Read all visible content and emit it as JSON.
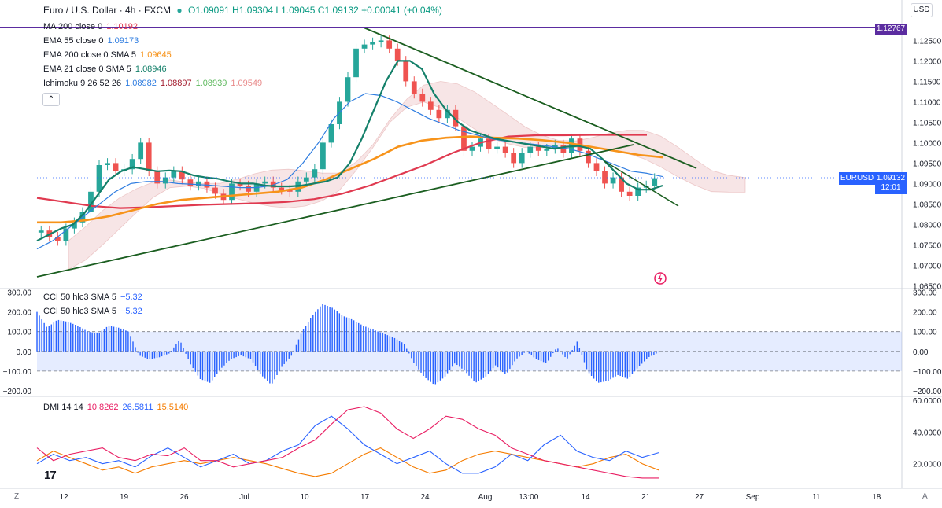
{
  "header": {
    "symbol": "Euro / U.S. Dollar · 4h · FXCM",
    "ohlc": "O1.09091 H1.09304 L1.09045 C1.09132 +0.00041 (+0.04%)"
  },
  "legend_main": [
    {
      "name": "MA 200 close 0",
      "value": "1.10192",
      "color": "#e03a50"
    },
    {
      "name": "EMA 55 close 0",
      "value": "1.09173",
      "color": "#2f7de0"
    },
    {
      "name": "EMA 200 close 0 SMA 5",
      "value": "1.09645",
      "color": "#f7931a"
    },
    {
      "name": "EMA 21 close 0 SMA 5",
      "value": "1.08946",
      "color": "#14806a"
    },
    {
      "name": "Ichimoku 9 26 52 26",
      "values": [
        "1.08982",
        "1.08897",
        "1.08939",
        "1.09549"
      ],
      "colors": [
        "#2f7de0",
        "#a31c2e",
        "#5cb85c",
        "#e88a8a"
      ]
    }
  ],
  "legend_cci": [
    {
      "name": "CCI 50 hlc3 SMA 5",
      "value": "−5.32"
    },
    {
      "name": "CCI 50 hlc3 SMA 5",
      "value": "−5.32"
    }
  ],
  "legend_dmi": {
    "name": "DMI 14 14",
    "values": [
      "10.8262",
      "26.5811",
      "15.5140"
    ],
    "colors": [
      "#e91e63",
      "#2962ff",
      "#f57c00"
    ]
  },
  "scale_button": "USD",
  "badges": {
    "ma_value": "1.12767",
    "symbol_tag": "EURUSD",
    "price": "1.09132",
    "countdown": "12:01"
  },
  "corner_left": "Z",
  "corner_right": "A",
  "logo_text": "17",
  "chart_data": {
    "type": "line",
    "price_axis": [
      "1.12500",
      "1.12000",
      "1.11500",
      "1.11000",
      "1.10500",
      "1.10000",
      "1.09500",
      "1.09000",
      "1.08500",
      "1.08000",
      "1.07500",
      "1.07000",
      "1.06500"
    ],
    "price_ticks": [
      1.125,
      1.12,
      1.115,
      1.11,
      1.105,
      1.1,
      1.095,
      1.09,
      1.085,
      1.08,
      1.075,
      1.07,
      1.065
    ],
    "price_range": [
      1.0645,
      1.1295
    ],
    "time_axis": [
      {
        "label": "12",
        "t": 0.04
      },
      {
        "label": "19",
        "t": 0.13
      },
      {
        "label": "26",
        "t": 0.22
      },
      {
        "label": "Jul",
        "t": 0.31
      },
      {
        "label": "10",
        "t": 0.4
      },
      {
        "label": "17",
        "t": 0.49
      },
      {
        "label": "24",
        "t": 0.58
      },
      {
        "label": "Aug",
        "t": 0.67
      },
      {
        "label": "13:00",
        "t": 0.735
      },
      {
        "label": "14",
        "t": 0.82
      },
      {
        "label": "21",
        "t": 0.91
      },
      {
        "label": "27",
        "t": 0.99
      },
      {
        "label": "Sep",
        "t": 1.07
      },
      {
        "label": "11",
        "t": 1.165
      },
      {
        "label": "18",
        "t": 1.255
      }
    ],
    "close_series": [
      1.0785,
      1.077,
      1.076,
      1.079,
      1.0805,
      1.083,
      1.088,
      1.0945,
      1.095,
      1.093,
      1.0935,
      1.096,
      1.1,
      1.093,
      1.09,
      1.0915,
      1.093,
      1.091,
      1.0895,
      1.0905,
      1.089,
      1.0875,
      1.086,
      1.09,
      1.0895,
      1.088,
      1.09,
      1.0905,
      1.089,
      1.0885,
      1.088,
      1.0905,
      1.0915,
      1.0935,
      1.1,
      1.1045,
      1.11,
      1.116,
      1.123,
      1.124,
      1.1245,
      1.125,
      1.123,
      1.12,
      1.115,
      1.112,
      1.11,
      1.108,
      1.106,
      1.108,
      1.104,
      1.098,
      1.099,
      1.101,
      1.0985,
      1.099,
      1.0975,
      1.095,
      1.0975,
      1.099,
      1.098,
      1.0985,
      1.0995,
      1.0975,
      1.101,
      1.098,
      1.095,
      1.093,
      1.09,
      1.0915,
      1.088,
      1.087,
      1.089,
      1.0895,
      1.0913
    ],
    "ema21": [
      1.076,
      1.0775,
      1.079,
      1.08,
      1.083,
      1.087,
      1.091,
      1.093,
      1.094,
      1.0935,
      1.093,
      1.0932,
      1.093,
      1.092,
      1.0915,
      1.0912,
      1.0905,
      1.09,
      1.09,
      1.0895,
      1.0893,
      1.0893,
      1.0895,
      1.09,
      1.0905,
      1.0915,
      1.095,
      1.101,
      1.108,
      1.115,
      1.12,
      1.12,
      1.118,
      1.112,
      1.108,
      1.105,
      1.103,
      1.102,
      1.101,
      1.1005,
      1.1,
      1.0995,
      1.099,
      1.0985,
      1.099,
      1.0992,
      1.0985,
      1.096,
      1.093,
      1.09,
      1.0885,
      1.0885,
      1.0895
    ],
    "ema55": [
      1.074,
      1.076,
      1.079,
      1.082,
      1.085,
      1.088,
      1.09,
      1.0905,
      1.0905,
      1.09,
      1.0898,
      1.0896,
      1.0893,
      1.089,
      1.089,
      1.0895,
      1.091,
      1.095,
      1.1,
      1.106,
      1.11,
      1.112,
      1.1115,
      1.11,
      1.108,
      1.106,
      1.1045,
      1.103,
      1.102,
      1.101,
      1.1003,
      1.0999,
      1.0995,
      1.099,
      1.0985,
      1.0975,
      1.096,
      1.0945,
      1.093,
      1.0925,
      1.0917
    ],
    "ema200": [
      1.0805,
      1.0805,
      1.081,
      1.082,
      1.0835,
      1.085,
      1.086,
      1.0865,
      1.087,
      1.0875,
      1.088,
      1.089,
      1.091,
      1.0935,
      1.096,
      1.099,
      1.1005,
      1.1012,
      1.1015,
      1.1012,
      1.101,
      1.1006,
      1.1,
      1.099,
      1.098,
      1.097,
      1.0964
    ],
    "ma200": [
      1.0865,
      1.0855,
      1.0845,
      1.084,
      1.0842,
      1.0845,
      1.0848,
      1.085,
      1.0852,
      1.0855,
      1.0862,
      1.0875,
      1.0895,
      1.092,
      1.0945,
      1.0975,
      1.1,
      1.1015,
      1.1018,
      1.1018,
      1.1019,
      1.1019,
      1.1019
    ],
    "cci": {
      "range": [
        -220,
        310
      ],
      "ticks": [
        300,
        200,
        100,
        0,
        -100,
        -200
      ],
      "tick_labels": [
        "300.00",
        "200.00",
        "100.00",
        "0.00",
        "−100.00",
        "−200.00"
      ],
      "values": [
        200,
        120,
        160,
        150,
        130,
        100,
        90,
        130,
        120,
        100,
        -20,
        -40,
        -30,
        -10,
        60,
        -60,
        -140,
        -160,
        -90,
        -40,
        -20,
        -40,
        -120,
        -170,
        -80,
        -20,
        100,
        180,
        240,
        220,
        180,
        160,
        130,
        110,
        90,
        70,
        40,
        -60,
        -130,
        -170,
        -130,
        -60,
        -100,
        -160,
        -130,
        -70,
        -120,
        -40,
        0,
        -40,
        -60,
        20,
        -40,
        50,
        -100,
        -160,
        -150,
        -120,
        -140,
        -80,
        -30,
        -5
      ]
    },
    "dmi": {
      "range": [
        5,
        62
      ],
      "ticks": [
        60,
        40,
        20
      ],
      "tick_labels": [
        "60.0000",
        "40.0000",
        "20.0000"
      ],
      "di_plus": [
        30,
        22,
        26,
        28,
        30,
        24,
        22,
        26,
        25,
        30,
        22,
        22,
        18,
        20,
        22,
        24,
        30,
        35,
        45,
        54,
        56,
        52,
        42,
        36,
        42,
        50,
        48,
        42,
        38,
        30,
        26,
        22,
        20,
        18,
        16,
        14,
        12,
        11,
        11
      ],
      "di_minus": [
        20,
        26,
        22,
        24,
        20,
        22,
        18,
        25,
        30,
        24,
        18,
        22,
        26,
        20,
        22,
        28,
        32,
        44,
        50,
        42,
        32,
        26,
        20,
        24,
        28,
        20,
        14,
        14,
        18,
        26,
        22,
        32,
        38,
        28,
        24,
        22,
        28,
        24,
        27
      ],
      "adx": [
        22,
        28,
        24,
        20,
        16,
        18,
        14,
        18,
        20,
        22,
        20,
        22,
        24,
        22,
        20,
        17,
        14,
        12,
        14,
        20,
        26,
        30,
        24,
        18,
        14,
        16,
        22,
        26,
        28,
        26,
        24,
        22,
        20,
        18,
        20,
        24,
        26,
        20,
        16
      ]
    }
  }
}
